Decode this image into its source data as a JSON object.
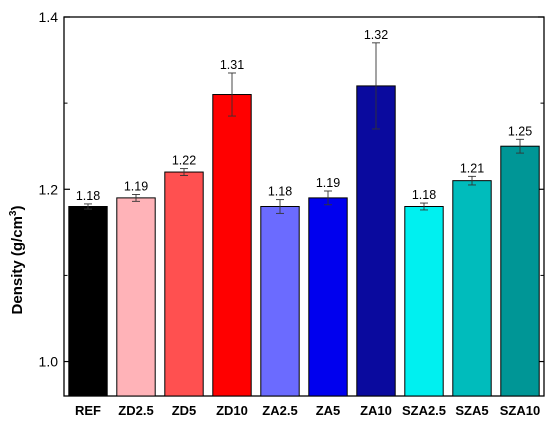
{
  "chart_data": {
    "type": "bar",
    "title": "",
    "xlabel": "",
    "ylabel": "Density (g/cm",
    "ylabel_superscript": "3",
    "ylabel_suffix": ")",
    "ylim": [
      0.96,
      1.4
    ],
    "yticks": [
      1.0,
      1.2,
      1.4
    ],
    "ytick_labels": [
      "1.0",
      "1.2",
      "1.4"
    ],
    "grid": false,
    "categories": [
      "REF",
      "ZD2.5",
      "ZD5",
      "ZD10",
      "ZA2.5",
      "ZA5",
      "ZA10",
      "SZA2.5",
      "SZA5",
      "SZA10"
    ],
    "values": [
      1.18,
      1.19,
      1.22,
      1.31,
      1.18,
      1.19,
      1.32,
      1.18,
      1.21,
      1.25
    ],
    "value_labels": [
      "1.18",
      "1.19",
      "1.22",
      "1.31",
      "1.18",
      "1.19",
      "1.32",
      "1.18",
      "1.21",
      "1.25"
    ],
    "errors": [
      0.003,
      0.004,
      0.004,
      0.025,
      0.008,
      0.008,
      0.05,
      0.004,
      0.005,
      0.008
    ],
    "colors": [
      "#000000",
      "#ffb3b8",
      "#ff5050",
      "#ff0000",
      "#6b6bff",
      "#0000ee",
      "#0a0a9e",
      "#00f0f0",
      "#00bcbc",
      "#009696"
    ]
  }
}
